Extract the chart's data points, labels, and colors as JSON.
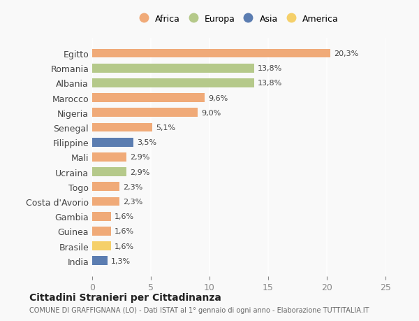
{
  "countries": [
    "Egitto",
    "Romania",
    "Albania",
    "Marocco",
    "Nigeria",
    "Senegal",
    "Filippine",
    "Mali",
    "Ucraina",
    "Togo",
    "Costa d'Avorio",
    "Gambia",
    "Guinea",
    "Brasile",
    "India"
  ],
  "values": [
    20.3,
    13.8,
    13.8,
    9.6,
    9.0,
    5.1,
    3.5,
    2.9,
    2.9,
    2.3,
    2.3,
    1.6,
    1.6,
    1.6,
    1.3
  ],
  "continents": [
    "Africa",
    "Europa",
    "Europa",
    "Africa",
    "Africa",
    "Africa",
    "Asia",
    "Africa",
    "Europa",
    "Africa",
    "Africa",
    "Africa",
    "Africa",
    "America",
    "Asia"
  ],
  "colors": {
    "Africa": "#F0AA78",
    "Europa": "#B5C98A",
    "Asia": "#5B7DB1",
    "America": "#F5D06A"
  },
  "legend_order": [
    "Africa",
    "Europa",
    "Asia",
    "America"
  ],
  "xlim": [
    0,
    25
  ],
  "xticks": [
    0,
    5,
    10,
    15,
    20,
    25
  ],
  "title": "Cittadini Stranieri per Cittadinanza",
  "subtitle": "COMUNE DI GRAFFIGNANA (LO) - Dati ISTAT al 1° gennaio di ogni anno - Elaborazione TUTTITALIA.IT",
  "bg_color": "#f9f9f9",
  "bar_height": 0.6
}
